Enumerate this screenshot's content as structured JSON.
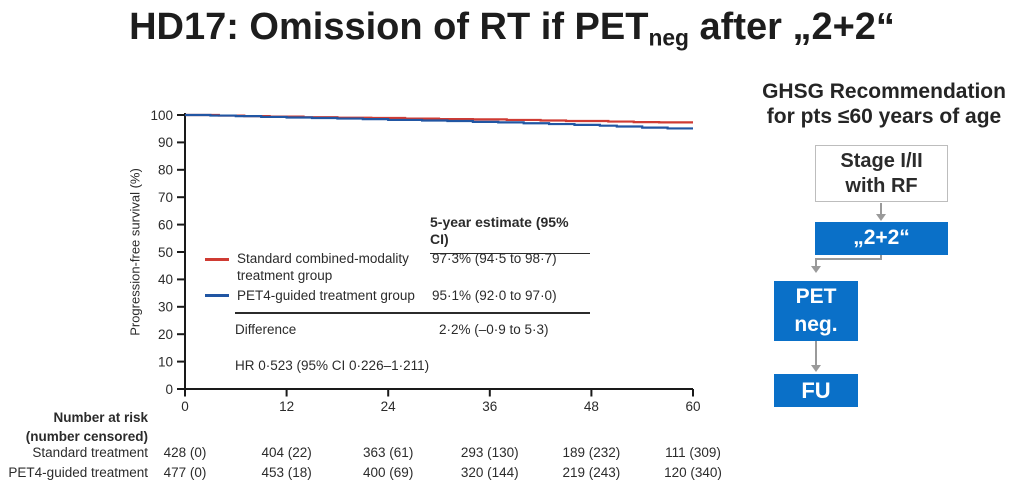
{
  "title": {
    "prefix": "HD17: Omission of RT if PET",
    "subscript": "neg",
    "suffix": " after „2+2“"
  },
  "colors": {
    "standard_red": "#cf3b33",
    "pet4_blue": "#2156a3",
    "axis": "#1a1a1a",
    "text": "#2b2b2b",
    "flow_blue": "#0a70c8",
    "arrow_gray": "#9a9a9a",
    "outline_border": "#bdbdbd"
  },
  "chart_data": {
    "type": "line",
    "step": true,
    "title": "",
    "xlabel": "",
    "ylabel": "Progression-free survival (%)",
    "xlim": [
      0,
      60
    ],
    "ylim": [
      0,
      100
    ],
    "xticks": [
      0,
      12,
      24,
      36,
      48,
      60
    ],
    "yticks": [
      0,
      10,
      20,
      30,
      40,
      50,
      60,
      70,
      80,
      90,
      100
    ],
    "grid": false,
    "series": [
      {
        "name": "Standard combined-modality treatment group",
        "color": "#cf3b33",
        "five_year_estimate": "97·3% (94·5 to 98·7)",
        "points": [
          [
            0,
            100
          ],
          [
            4,
            99.8
          ],
          [
            7,
            99.6
          ],
          [
            10,
            99.4
          ],
          [
            14,
            99.2
          ],
          [
            18,
            99.0
          ],
          [
            22,
            98.9
          ],
          [
            26,
            98.7
          ],
          [
            30,
            98.5
          ],
          [
            34,
            98.4
          ],
          [
            38,
            98.2
          ],
          [
            42,
            98.0
          ],
          [
            45,
            97.8
          ],
          [
            50,
            97.6
          ],
          [
            53,
            97.4
          ],
          [
            56,
            97.3
          ],
          [
            60,
            97.3
          ]
        ]
      },
      {
        "name": "PET4-guided treatment group",
        "color": "#2156a3",
        "five_year_estimate": "95·1% (92·0 to 97·0)",
        "points": [
          [
            0,
            100
          ],
          [
            3,
            99.8
          ],
          [
            6,
            99.6
          ],
          [
            9,
            99.3
          ],
          [
            12,
            99.1
          ],
          [
            15,
            98.9
          ],
          [
            18,
            98.7
          ],
          [
            21,
            98.5
          ],
          [
            24,
            98.2
          ],
          [
            28,
            98.0
          ],
          [
            31,
            97.8
          ],
          [
            34,
            97.5
          ],
          [
            37,
            97.3
          ],
          [
            40,
            97.0
          ],
          [
            43,
            96.7
          ],
          [
            46,
            96.4
          ],
          [
            49,
            96.1
          ],
          [
            51,
            95.8
          ],
          [
            54,
            95.4
          ],
          [
            57,
            95.1
          ],
          [
            60,
            95.1
          ]
        ]
      }
    ],
    "legend": {
      "header": "5-year estimate (95% CI)",
      "rows": [
        {
          "label_lines": [
            "Standard combined-modality",
            "treatment group"
          ],
          "value": "97·3% (94·5 to 98·7)"
        },
        {
          "label_lines": [
            "PET4-guided treatment group",
            ""
          ],
          "value": "95·1% (92·0 to 97·0)"
        }
      ],
      "difference_label": "Difference",
      "difference_value": "2·2% (–0·9 to 5·3)",
      "hr_text": "HR 0·523 (95% CI 0·226–1·211)"
    },
    "number_at_risk": {
      "title_lines": [
        "Number at risk",
        "(number censored)"
      ],
      "rows": [
        {
          "label": "Standard treatment",
          "values": [
            "428 (0)",
            "404 (22)",
            "363 (61)",
            "293 (130)",
            "189 (232)",
            "111 (309)"
          ]
        },
        {
          "label": "PET4-guided treatment",
          "values": [
            "477 (0)",
            "453 (18)",
            "400 (69)",
            "320 (144)",
            "219 (243)",
            "120 (340)"
          ]
        }
      ]
    }
  },
  "flowchart": {
    "heading_lines": [
      "GHSG Recommendation",
      "for pts ≤60 years of age"
    ],
    "nodes": {
      "stage": {
        "label_lines": [
          "Stage I/II",
          "with RF"
        ]
      },
      "chemo": {
        "label": "„2+2“"
      },
      "pet": {
        "label_lines": [
          "PET",
          "neg."
        ]
      },
      "fu": {
        "label": "FU"
      }
    }
  }
}
